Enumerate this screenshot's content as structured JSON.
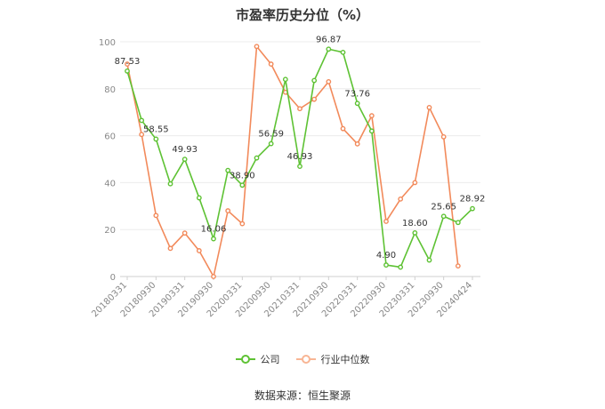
{
  "chart_data": {
    "type": "line",
    "title": "市盈率历史分位（%）",
    "ylim": [
      0,
      100
    ],
    "yticks": [
      0,
      20,
      40,
      60,
      80,
      100
    ],
    "x_tick_labels": [
      "20180331",
      "20180930",
      "20190331",
      "20190930",
      "20200331",
      "20200930",
      "20210331",
      "20210930",
      "20220331",
      "20220930",
      "20230331",
      "20230930",
      "20240424"
    ],
    "grid": true,
    "legend_position": "bottom",
    "series": [
      {
        "name": "公司",
        "color": "#5ec234",
        "values": [
          87.53,
          66.5,
          58.55,
          39.5,
          49.93,
          33.5,
          16.06,
          45.2,
          38.9,
          50.5,
          56.59,
          84.0,
          46.93,
          83.5,
          96.87,
          95.5,
          73.76,
          62.0,
          4.9,
          4.0,
          18.6,
          7.0,
          25.65,
          23.0,
          28.92
        ],
        "data_labels": [
          "87.53",
          "",
          "58.55",
          "",
          "49.93",
          "",
          "16.06",
          "",
          "38.90",
          "",
          "56.59",
          "",
          "46.93",
          "",
          "96.87",
          "",
          "73.76",
          "",
          "4.90",
          "",
          "18.60",
          "",
          "25.65",
          "",
          "28.92"
        ]
      },
      {
        "name": "行业中位数",
        "color": "#f28a5b",
        "values": [
          90.5,
          60.5,
          26.0,
          12.0,
          18.5,
          11.0,
          0.0,
          28.0,
          22.5,
          98.0,
          90.5,
          78.5,
          71.5,
          75.5,
          83.0,
          63.0,
          56.5,
          68.5,
          23.5,
          33.0,
          40.0,
          72.0,
          59.5,
          4.5,
          null
        ],
        "data_labels": []
      }
    ]
  },
  "legend": {
    "company": "公司",
    "industry": "行业中位数"
  },
  "source_text": "数据来源：恒生聚源"
}
